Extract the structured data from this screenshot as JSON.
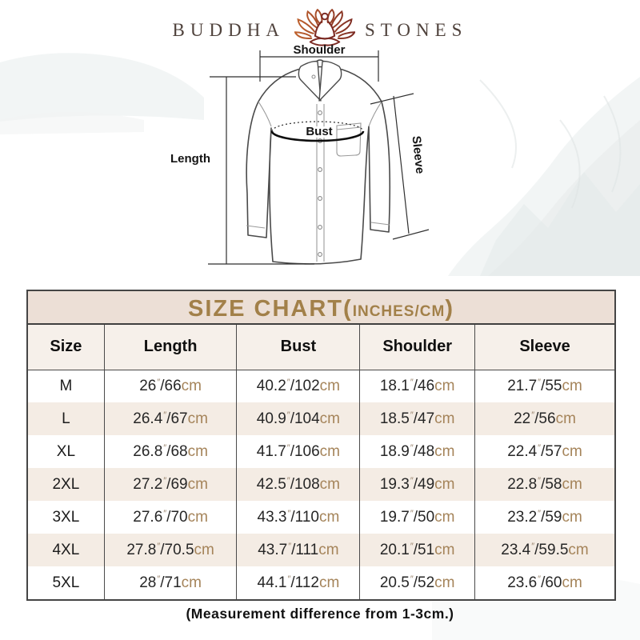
{
  "brand": {
    "name_left": "BUDDHA",
    "name_right": "STONES"
  },
  "diagram": {
    "labels": {
      "shoulder": "Shoulder",
      "bust": "Bust",
      "length": "Length",
      "sleeve": "Sleeve"
    }
  },
  "size_chart": {
    "title_prefix": "SIZE CHART(",
    "title_units": "INCHES/CM",
    "title_close": ")",
    "columns": [
      "Size",
      "Length",
      "Bust",
      "Shoulder",
      "Sleeve"
    ],
    "unit_inch_mark": "″",
    "unit_cm_label": "cm",
    "rows": [
      {
        "size": "M",
        "cells": [
          {
            "in": "26",
            "cm": "66"
          },
          {
            "in": "40.2",
            "cm": "102"
          },
          {
            "in": "18.1",
            "cm": "46"
          },
          {
            "in": "21.7",
            "cm": "55"
          }
        ]
      },
      {
        "size": "L",
        "cells": [
          {
            "in": "26.4",
            "cm": "67"
          },
          {
            "in": "40.9",
            "cm": "104"
          },
          {
            "in": "18.5",
            "cm": "47"
          },
          {
            "in": "22",
            "cm": "56"
          }
        ]
      },
      {
        "size": "XL",
        "cells": [
          {
            "in": "26.8",
            "cm": "68"
          },
          {
            "in": "41.7",
            "cm": "106"
          },
          {
            "in": "18.9",
            "cm": "48"
          },
          {
            "in": "22.4",
            "cm": "57"
          }
        ]
      },
      {
        "size": "2XL",
        "cells": [
          {
            "in": "27.2",
            "cm": "69"
          },
          {
            "in": "42.5",
            "cm": "108"
          },
          {
            "in": "19.3",
            "cm": "49"
          },
          {
            "in": "22.8",
            "cm": "58"
          }
        ]
      },
      {
        "size": "3XL",
        "cells": [
          {
            "in": "27.6",
            "cm": "70"
          },
          {
            "in": "43.3",
            "cm": "110"
          },
          {
            "in": "19.7",
            "cm": "50"
          },
          {
            "in": "23.2",
            "cm": "59"
          }
        ]
      },
      {
        "size": "4XL",
        "cells": [
          {
            "in": "27.8",
            "cm": "70.5"
          },
          {
            "in": "43.7",
            "cm": "111"
          },
          {
            "in": "20.1",
            "cm": "51"
          },
          {
            "in": "23.4",
            "cm": "59.5"
          }
        ]
      },
      {
        "size": "5XL",
        "cells": [
          {
            "in": "28",
            "cm": "71"
          },
          {
            "in": "44.1",
            "cm": "112"
          },
          {
            "in": "20.5",
            "cm": "52"
          },
          {
            "in": "23.6",
            "cm": "60"
          }
        ]
      }
    ]
  },
  "chart_data": {
    "type": "table",
    "title": "SIZE CHART(INCHES/CM)",
    "columns": [
      "Size",
      "Length",
      "Bust",
      "Shoulder",
      "Sleeve"
    ],
    "rows": [
      [
        "M",
        "26″/66cm",
        "40.2″/102cm",
        "18.1″/46cm",
        "21.7″/55cm"
      ],
      [
        "L",
        "26.4″/67cm",
        "40.9″/104cm",
        "18.5″/47cm",
        "22″/56cm"
      ],
      [
        "XL",
        "26.8″/68cm",
        "41.7″/106cm",
        "18.9″/48cm",
        "22.4″/57cm"
      ],
      [
        "2XL",
        "27.2″/69cm",
        "42.5″/108cm",
        "19.3″/49cm",
        "22.8″/58cm"
      ],
      [
        "3XL",
        "27.6″/70cm",
        "43.3″/110cm",
        "19.7″/50cm",
        "23.2″/59cm"
      ],
      [
        "4XL",
        "27.8″/70.5cm",
        "43.7″/111cm",
        "20.1″/51cm",
        "23.4″/59.5cm"
      ],
      [
        "5XL",
        "28″/71cm",
        "44.1″/112cm",
        "20.5″/52cm",
        "23.6″/60cm"
      ]
    ]
  },
  "footer": {
    "note": "(Measurement difference from 1-3cm.)"
  },
  "colors": {
    "title_text": "#a28049",
    "title_bg": "#ecdfd6",
    "header_bg": "#f6f0ea",
    "row_alt_bg": "#f4ece4",
    "row_bg": "#ffffff",
    "table_border": "#4a4a4a",
    "cm_text": "#a5845a",
    "number_text": "#262626",
    "brand_text": "#4f423c",
    "lotus_light": "#c0632e",
    "lotus_dark": "#7c2b24"
  }
}
